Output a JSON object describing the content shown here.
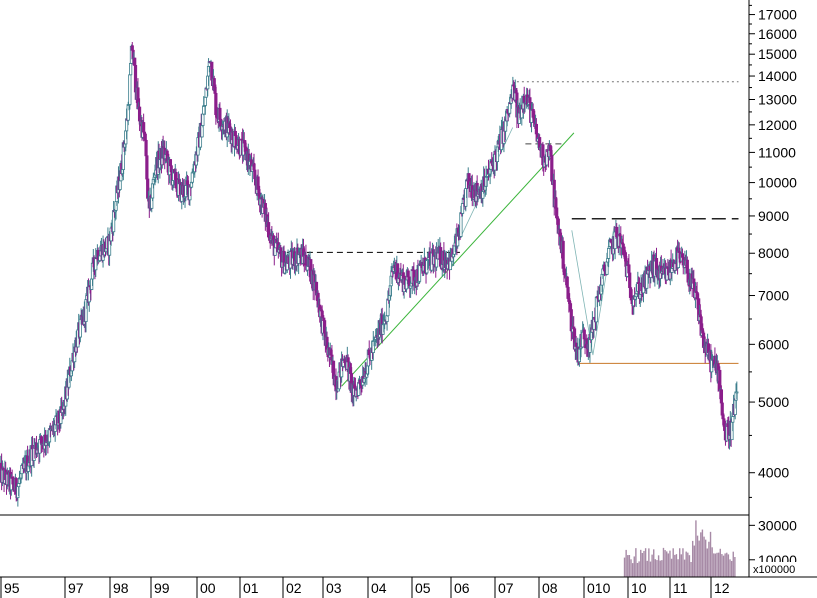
{
  "chart_data": {
    "type": "candlestick",
    "scale": "log",
    "price_axis": {
      "ticks": [
        "17000",
        "16000",
        "15000",
        "14000",
        "13000",
        "12000",
        "11000",
        "10000",
        "9000",
        "8000",
        "7000",
        "6000",
        "5000",
        "4000"
      ],
      "ylim": [
        3500,
        17800
      ]
    },
    "volume_axis": {
      "ticks": [
        "30000",
        "10000"
      ],
      "multiplier_label": "x100000",
      "ylim": [
        0,
        36000
      ]
    },
    "x_labels": [
      "95",
      "97",
      "98",
      "99",
      "00",
      "01",
      "02",
      "03",
      "04",
      "05",
      "06",
      "07",
      "08",
      "010",
      "10",
      "11",
      "12"
    ],
    "price_path": [
      [
        1995.0,
        4000
      ],
      [
        1995.4,
        3800
      ],
      [
        1995.8,
        4300
      ],
      [
        1996.2,
        4500
      ],
      [
        1996.5,
        4800
      ],
      [
        1996.8,
        6000
      ],
      [
        1997.0,
        6500
      ],
      [
        1997.3,
        8000
      ],
      [
        1997.6,
        8200
      ],
      [
        1997.9,
        10500
      ],
      [
        1998.05,
        12500
      ],
      [
        1998.15,
        15400
      ],
      [
        1998.3,
        12500
      ],
      [
        1998.45,
        11500
      ],
      [
        1998.55,
        9000
      ],
      [
        1998.7,
        10500
      ],
      [
        1998.9,
        11000
      ],
      [
        1999.1,
        10200
      ],
      [
        1999.3,
        9700
      ],
      [
        1999.5,
        9800
      ],
      [
        1999.75,
        11500
      ],
      [
        1999.9,
        13200
      ],
      [
        2000.0,
        15000
      ],
      [
        2000.15,
        12500
      ],
      [
        2000.35,
        12000
      ],
      [
        2000.6,
        11500
      ],
      [
        2000.9,
        10800
      ],
      [
        2001.2,
        9500
      ],
      [
        2001.5,
        8200
      ],
      [
        2001.8,
        7700
      ],
      [
        2002.1,
        8000
      ],
      [
        2002.3,
        7800
      ],
      [
        2002.5,
        7200
      ],
      [
        2002.75,
        6000
      ],
      [
        2003.0,
        5300
      ],
      [
        2003.2,
        5800
      ],
      [
        2003.4,
        5100
      ],
      [
        2003.6,
        5400
      ],
      [
        2003.9,
        6000
      ],
      [
        2004.2,
        6700
      ],
      [
        2004.35,
        7700
      ],
      [
        2004.6,
        7300
      ],
      [
        2004.85,
        7400
      ],
      [
        2005.1,
        7700
      ],
      [
        2005.4,
        7900
      ],
      [
        2005.7,
        7800
      ],
      [
        2005.9,
        8500
      ],
      [
        2006.1,
        10000
      ],
      [
        2006.3,
        9700
      ],
      [
        2006.5,
        9900
      ],
      [
        2006.8,
        11000
      ],
      [
        2007.0,
        12000
      ],
      [
        2007.2,
        13500
      ],
      [
        2007.3,
        12200
      ],
      [
        2007.45,
        13300
      ],
      [
        2007.6,
        12500
      ],
      [
        2007.75,
        11500
      ],
      [
        2007.9,
        10800
      ],
      [
        2008.05,
        11000
      ],
      [
        2008.2,
        9000
      ],
      [
        2008.35,
        8000
      ],
      [
        2008.55,
        6500
      ],
      [
        2008.7,
        5800
      ],
      [
        2008.85,
        6200
      ],
      [
        2009.0,
        6000
      ],
      [
        2009.2,
        7000
      ],
      [
        2009.45,
        8000
      ],
      [
        2009.65,
        8500
      ],
      [
        2009.8,
        8000
      ],
      [
        2010.0,
        7000
      ],
      [
        2010.25,
        7200
      ],
      [
        2010.5,
        7700
      ],
      [
        2010.7,
        7400
      ],
      [
        2010.85,
        7500
      ],
      [
        2011.05,
        7900
      ],
      [
        2011.3,
        7600
      ],
      [
        2011.55,
        6800
      ],
      [
        2011.7,
        6000
      ],
      [
        2011.85,
        5700
      ],
      [
        2012.05,
        5500
      ],
      [
        2012.2,
        4500
      ],
      [
        2012.35,
        4600
      ],
      [
        2012.45,
        5000
      ]
    ],
    "annotations": [
      {
        "kind": "dashed",
        "color": "#000000",
        "p": [
          [
            2001.8,
            8020
          ],
          [
            2005.9,
            8020
          ]
        ]
      },
      {
        "kind": "dashed",
        "color": "#444444",
        "p": [
          [
            2007.45,
            11300
          ],
          [
            2008.4,
            11300
          ]
        ]
      },
      {
        "kind": "dotted",
        "color": "#777777",
        "p": [
          [
            2007.25,
            13750
          ],
          [
            2012.5,
            13750
          ]
        ]
      },
      {
        "kind": "longdash",
        "color": "#222222",
        "p": [
          [
            2008.55,
            8920
          ],
          [
            2012.5,
            8920
          ]
        ]
      },
      {
        "kind": "solid",
        "color": "#c8782a",
        "p": [
          [
            2008.7,
            5650
          ],
          [
            2012.5,
            5650
          ]
        ]
      },
      {
        "kind": "solid",
        "color": "#3cb53c",
        "p": [
          [
            2003.1,
            5260
          ],
          [
            2008.6,
            11700
          ]
        ]
      },
      {
        "kind": "thin",
        "color": "#7fb4b4",
        "p": [
          [
            2005.6,
            7700
          ],
          [
            2007.15,
            11900
          ]
        ]
      },
      {
        "kind": "thin",
        "color": "#7fb4b4",
        "p": [
          [
            2008.55,
            8600
          ],
          [
            2009.05,
            5800
          ],
          [
            2009.55,
            8700
          ]
        ]
      }
    ],
    "colors": {
      "up": "#3d7f8d",
      "down": "#8b1e8b",
      "volume": "#a78aa6",
      "frame": "#000000"
    }
  }
}
